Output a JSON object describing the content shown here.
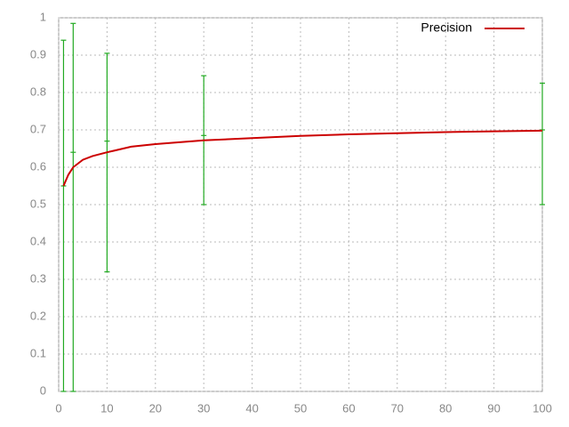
{
  "chart_data": {
    "type": "line",
    "x": [
      1,
      2,
      3,
      5,
      7,
      10,
      15,
      20,
      30,
      40,
      50,
      60,
      70,
      80,
      90,
      100
    ],
    "series": [
      {
        "name": "Precision",
        "color": "#cc0000",
        "values": [
          0.55,
          0.58,
          0.6,
          0.62,
          0.63,
          0.64,
          0.655,
          0.662,
          0.672,
          0.678,
          0.684,
          0.688,
          0.691,
          0.694,
          0.696,
          0.698
        ]
      }
    ],
    "errorbars": {
      "color": "#22aa22",
      "x": [
        1,
        3,
        10,
        30,
        100
      ],
      "values": [
        0.55,
        0.64,
        0.67,
        0.685,
        0.7
      ],
      "low": [
        0,
        0,
        0.32,
        0.5,
        0.5
      ],
      "high": [
        0.94,
        0.985,
        0.905,
        0.845,
        0.825
      ]
    },
    "xlim": [
      0,
      100
    ],
    "ylim": [
      0,
      1
    ],
    "xticks": [
      0,
      10,
      20,
      30,
      40,
      50,
      60,
      70,
      80,
      90,
      100
    ],
    "yticks": [
      0,
      0.1,
      0.2,
      0.3,
      0.4,
      0.5,
      0.6,
      0.7,
      0.8,
      0.9,
      1
    ],
    "grid": true,
    "legend": "top-right"
  }
}
